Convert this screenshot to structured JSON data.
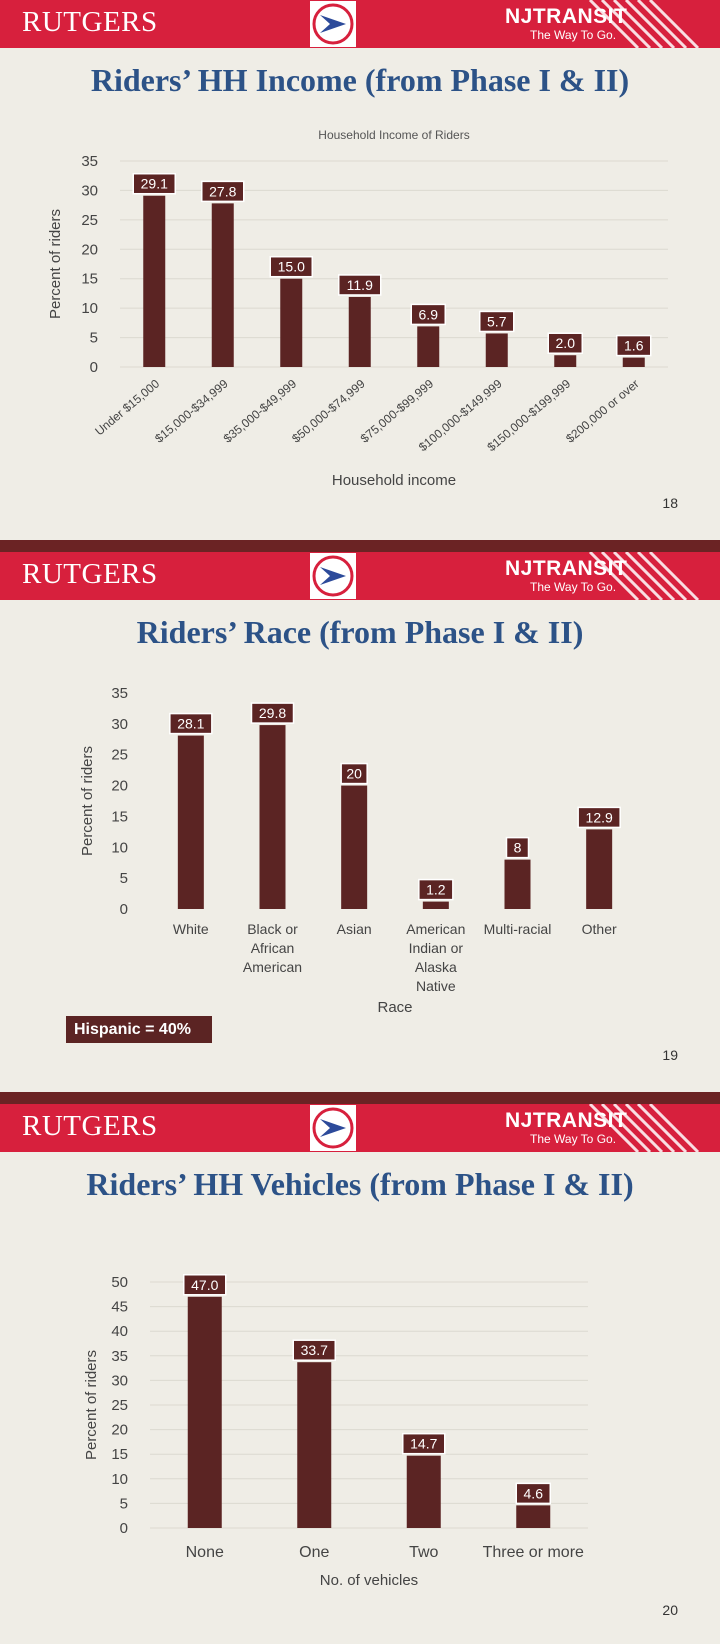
{
  "header": {
    "brand_left": "RUTGERS",
    "brand_right": "NJTRANSIT",
    "tagline": "The Way To Go.",
    "logo_icon": "transit-arrow-logo-icon",
    "header_color": "#d7203d"
  },
  "colors": {
    "bar": "#5b2423",
    "title": "#2c5287",
    "background": "#efede6"
  },
  "slides": [
    {
      "title": "Riders’ HH Income (from Phase I & II)",
      "page_number": "18"
    },
    {
      "title": "Riders’ Race (from Phase I & II)",
      "page_number": "19",
      "note": "Hispanic = 40%"
    },
    {
      "title": "Riders’ HH Vehicles (from Phase I & II)",
      "page_number": "20"
    }
  ],
  "chart_data": [
    {
      "type": "bar",
      "title": "Household Income of Riders",
      "xlabel": "Household income",
      "ylabel": "Percent of riders",
      "categories": [
        "Under $15,000",
        "$15,000-$34,999",
        "$35,000-$49,999",
        "$50,000-$74,999",
        "$75,000-$99,999",
        "$100,000-$149,999",
        "$150,000-$199,999",
        "$200,000 or over"
      ],
      "values": [
        29.1,
        27.8,
        15.0,
        11.9,
        6.9,
        5.7,
        2.0,
        1.6
      ],
      "value_labels": [
        "29.1",
        "27.8",
        "15.0",
        "11.9",
        "6.9",
        "5.7",
        "2.0",
        "1.6"
      ],
      "ylim": [
        0,
        35
      ],
      "yticks": [
        "0",
        "5",
        "10",
        "15",
        "20",
        "25",
        "30",
        "35"
      ],
      "grid": true
    },
    {
      "type": "bar",
      "title": "",
      "xlabel": "Race",
      "ylabel": "Percent of riders",
      "categories": [
        "White",
        "Black or African American",
        "Asian",
        "American Indian or Alaska Native",
        "Multi-racial",
        "Other"
      ],
      "category_lines": [
        [
          "White"
        ],
        [
          "Black or",
          "African",
          "American"
        ],
        [
          "Asian"
        ],
        [
          "American",
          "Indian or",
          "Alaska",
          "Native"
        ],
        [
          "Multi-racial"
        ],
        [
          "Other"
        ]
      ],
      "values": [
        28.1,
        29.8,
        20,
        1.2,
        8,
        12.9
      ],
      "value_labels": [
        "28.1",
        "29.8",
        "20",
        "1.2",
        "8",
        "12.9"
      ],
      "ylim": [
        0,
        35
      ],
      "yticks": [
        "0",
        "5",
        "10",
        "15",
        "20",
        "25",
        "30",
        "35"
      ],
      "grid": false
    },
    {
      "type": "bar",
      "title": "",
      "xlabel": "No. of vehicles",
      "ylabel": "Percent of riders",
      "categories": [
        "None",
        "One",
        "Two",
        "Three or more"
      ],
      "values": [
        47.0,
        33.7,
        14.7,
        4.6
      ],
      "value_labels": [
        "47.0",
        "33.7",
        "14.7",
        "4.6"
      ],
      "ylim": [
        0,
        50
      ],
      "yticks": [
        "0",
        "5",
        "10",
        "15",
        "20",
        "25",
        "30",
        "35",
        "40",
        "45",
        "50"
      ],
      "grid": true
    }
  ]
}
